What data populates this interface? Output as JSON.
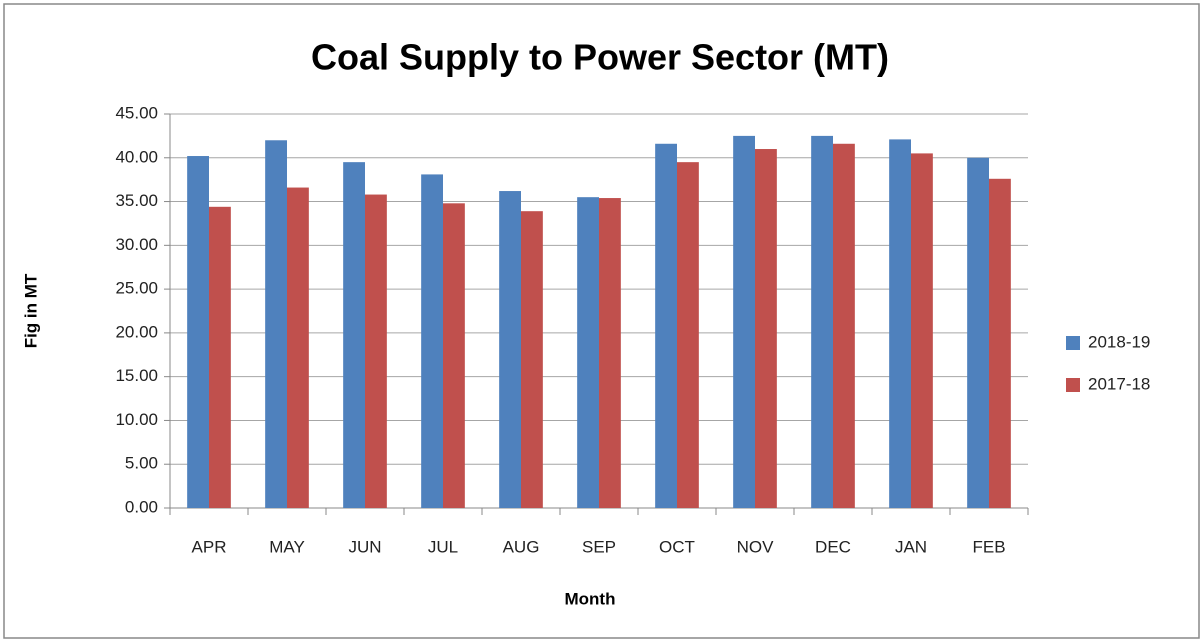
{
  "chart_data": {
    "type": "bar",
    "title": "Coal Supply to Power Sector (MT)",
    "x_label": "Month",
    "y_label": "Fig in MT",
    "categories": [
      "APR",
      "MAY",
      "JUN",
      "JUL",
      "AUG",
      "SEP",
      "OCT",
      "NOV",
      "DEC",
      "JAN",
      "FEB"
    ],
    "series": [
      {
        "name": "2018-19",
        "color": "#4f81bd",
        "values": [
          40.2,
          42.0,
          39.5,
          38.1,
          36.2,
          35.5,
          41.6,
          42.5,
          42.5,
          42.1,
          40.0
        ]
      },
      {
        "name": "2017-18",
        "color": "#c0504d",
        "values": [
          34.4,
          36.6,
          35.8,
          34.8,
          33.9,
          35.4,
          39.5,
          41.0,
          41.6,
          40.5,
          37.6
        ]
      }
    ],
    "ylim": [
      0,
      45
    ],
    "yticks": [
      {
        "value": 0,
        "label": "0.00"
      },
      {
        "value": 5,
        "label": "5.00"
      },
      {
        "value": 10,
        "label": "10.00"
      },
      {
        "value": 15,
        "label": "15.00"
      },
      {
        "value": 20,
        "label": "20.00"
      },
      {
        "value": 25,
        "label": "25.00"
      },
      {
        "value": 30,
        "label": "30.00"
      },
      {
        "value": 35,
        "label": "35.00"
      },
      {
        "value": 40,
        "label": "40.00"
      },
      {
        "value": 45,
        "label": "45.00"
      }
    ],
    "grid": true,
    "legend": "right"
  }
}
